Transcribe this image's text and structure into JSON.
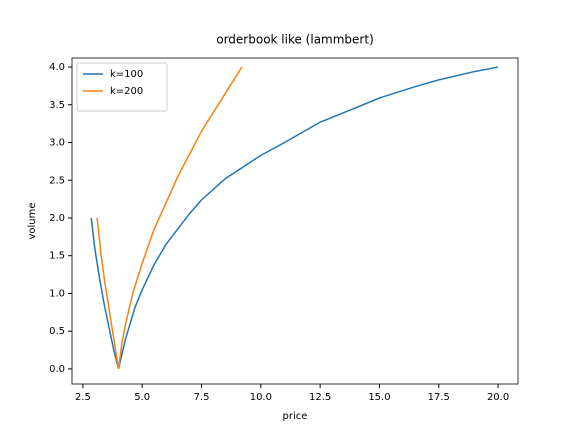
{
  "chart_data": {
    "type": "line",
    "title": "orderbook like (lammbert)",
    "x_label": "price",
    "y_label": "volume",
    "series": [
      {
        "name": "k=100",
        "color": "#1f77b4",
        "x": [
          2.85,
          3.0,
          3.2,
          3.4,
          3.6,
          3.8,
          4.0,
          4.3,
          4.7,
          5.0,
          5.5,
          6.0,
          7.0,
          7.5,
          8.5,
          10.0,
          11.0,
          12.5,
          14.0,
          15.0,
          16.5,
          17.5,
          19.0,
          20.0
        ],
        "values": [
          2.0,
          1.6,
          1.2,
          0.85,
          0.55,
          0.25,
          0.0,
          0.4,
          0.82,
          1.05,
          1.38,
          1.65,
          2.06,
          2.24,
          2.52,
          2.83,
          3.0,
          3.27,
          3.46,
          3.59,
          3.74,
          3.83,
          3.94,
          4.0
        ]
      },
      {
        "name": "k=200",
        "color": "#ff7f0e",
        "x": [
          3.1,
          3.25,
          3.4,
          3.55,
          3.7,
          3.85,
          4.0,
          4.15,
          4.3,
          4.6,
          5.0,
          5.5,
          6.0,
          6.5,
          7.0,
          7.5,
          8.0,
          8.6,
          9.2
        ],
        "values": [
          2.0,
          1.55,
          1.2,
          0.9,
          0.6,
          0.3,
          0.0,
          0.35,
          0.6,
          1.0,
          1.4,
          1.85,
          2.2,
          2.55,
          2.85,
          3.15,
          3.4,
          3.7,
          4.0
        ]
      }
    ],
    "xlim": [
      2.04,
      20.84
    ],
    "ylim": [
      -0.2,
      4.12
    ],
    "xticks": [
      2.5,
      {
        "value": 5,
        "label": "5.0"
      },
      7.5,
      {
        "value": 10,
        "label": "10.0"
      },
      12.5,
      {
        "value": 15,
        "label": "15.0"
      },
      17.5,
      {
        "value": 20,
        "label": "20.0"
      }
    ],
    "yticks": [
      {
        "value": 0,
        "label": "0.0"
      },
      0.5,
      {
        "value": 1,
        "label": "1.0"
      },
      1.5,
      {
        "value": 2,
        "label": "2.0"
      },
      2.5,
      {
        "value": 3,
        "label": "3.0"
      },
      3.5,
      {
        "value": 4,
        "label": "4.0"
      }
    ],
    "grid": false,
    "legend": "upper left"
  }
}
